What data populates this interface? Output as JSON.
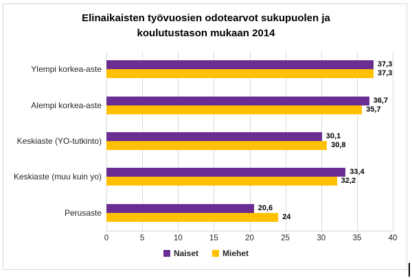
{
  "chart_data": {
    "type": "bar",
    "orientation": "horizontal",
    "title": "Elinaikaisten työvuosien odotearvot sukupuolen ja koulutustason mukaan 2014",
    "categories": [
      "Ylempi korkea-aste",
      "Alempi korkea-aste",
      "Keskiaste (YO-tutkinto)",
      "Keskiaste (muu kuin yo)",
      "Perusaste"
    ],
    "series": [
      {
        "name": "Naiset",
        "color": "#6a2d91",
        "values": [
          37.3,
          36.7,
          30.1,
          33.4,
          20.6
        ],
        "labels": [
          "37,3",
          "36,7",
          "30,1",
          "33,4",
          "20,6"
        ]
      },
      {
        "name": "Miehet",
        "color": "#ffc000",
        "values": [
          37.3,
          35.7,
          30.8,
          32.2,
          24
        ],
        "labels": [
          "37,3",
          "35,7",
          "30,8",
          "32,2",
          "24"
        ]
      }
    ],
    "xlim": [
      0,
      40
    ],
    "xticks": [
      0,
      5,
      10,
      15,
      20,
      25,
      30,
      35,
      40
    ],
    "grid": "vertical-only",
    "gridline_color": "#d9d9d9",
    "legend_position": "bottom",
    "value_labels_shown": true
  }
}
